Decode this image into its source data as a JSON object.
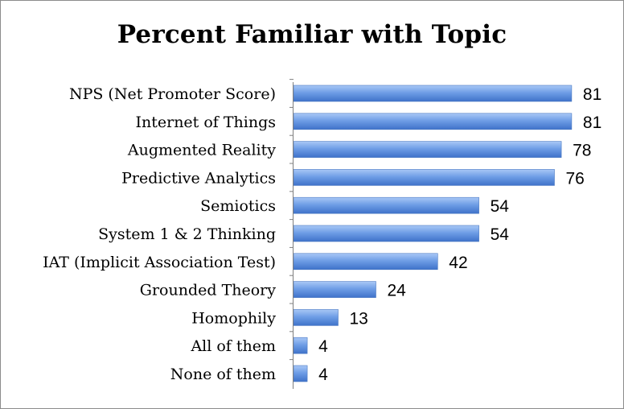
{
  "chart_data": {
    "type": "bar",
    "orientation": "horizontal",
    "title": "Percent Familiar with Topic",
    "xlabel": "",
    "ylabel": "",
    "xlim": [
      0,
      100
    ],
    "grid": false,
    "legend": "none",
    "bar_color": "#6f9ee6",
    "categories": [
      "NPS (Net Promoter Score)",
      "Internet of Things",
      "Augmented Reality",
      "Predictive Analytics",
      "Semiotics",
      "System 1 & 2 Thinking",
      "IAT (Implicit Association Test)",
      "Grounded Theory",
      "Homophily",
      "All of them",
      "None of them"
    ],
    "values": [
      81,
      81,
      78,
      76,
      54,
      54,
      42,
      24,
      13,
      4,
      4
    ]
  }
}
